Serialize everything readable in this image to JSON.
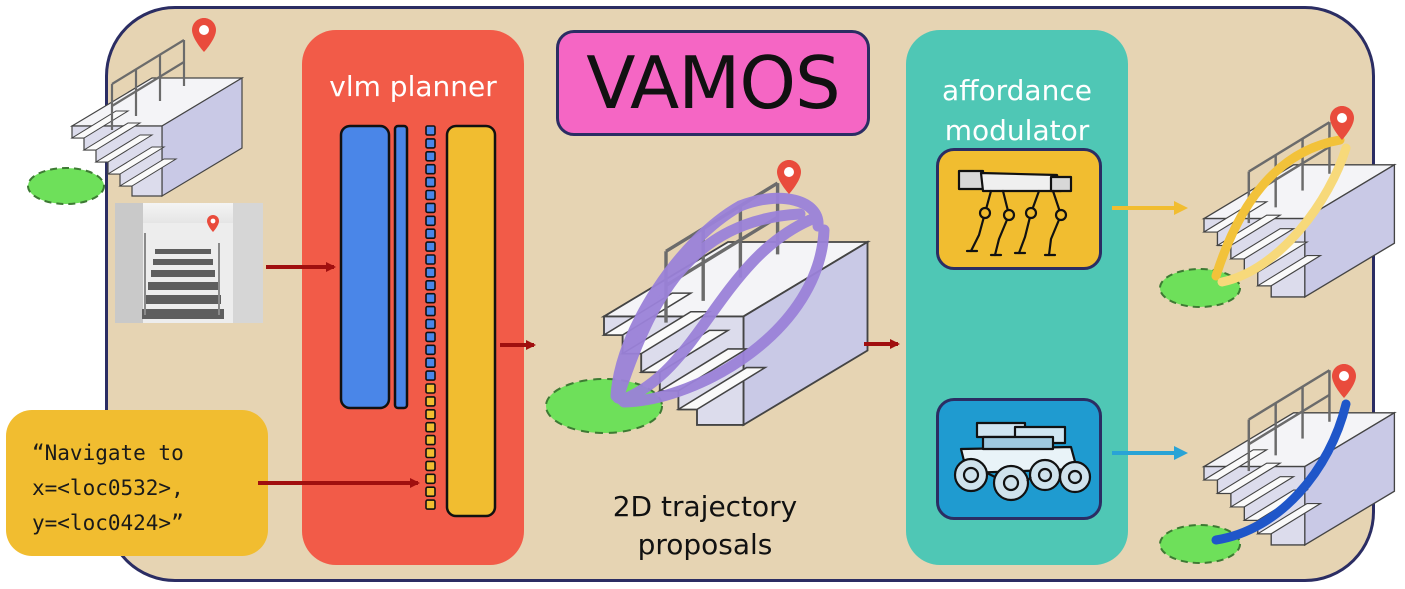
{
  "title": "VAMOS",
  "planner": {
    "title": "vlm planner"
  },
  "modulator": {
    "title_line1": "affordance",
    "title_line2": "modulator"
  },
  "instruction": {
    "line1": "“Navigate to",
    "line2": "x=<loc0532>,",
    "line3": "y=<loc0424>”"
  },
  "caption": {
    "line1": "2D trajectory",
    "line2": "proposals"
  },
  "colors": {
    "background": "#e6d4b3",
    "frame_border": "#2b2d63",
    "planner": "#f25b48",
    "modulator": "#4fc7b5",
    "vamos_box": "#f566c4",
    "instruction_box": "#f1bd30",
    "token_blue": "#4a86e8",
    "token_yellow": "#f1bd30",
    "arrow_dark": "#a00f0f",
    "trajectory_purple": "#9b82d9",
    "trajectory_yellow": "#f2c23a",
    "trajectory_blue": "#1f56c9",
    "pin": "#e94b3c",
    "goal_green": "#6ee05a"
  },
  "icons": [
    "stairs-icon",
    "location-pin-icon",
    "goal-ellipse-icon",
    "stairwell-photo",
    "legged-robot-icon",
    "wheeled-robot-icon"
  ]
}
